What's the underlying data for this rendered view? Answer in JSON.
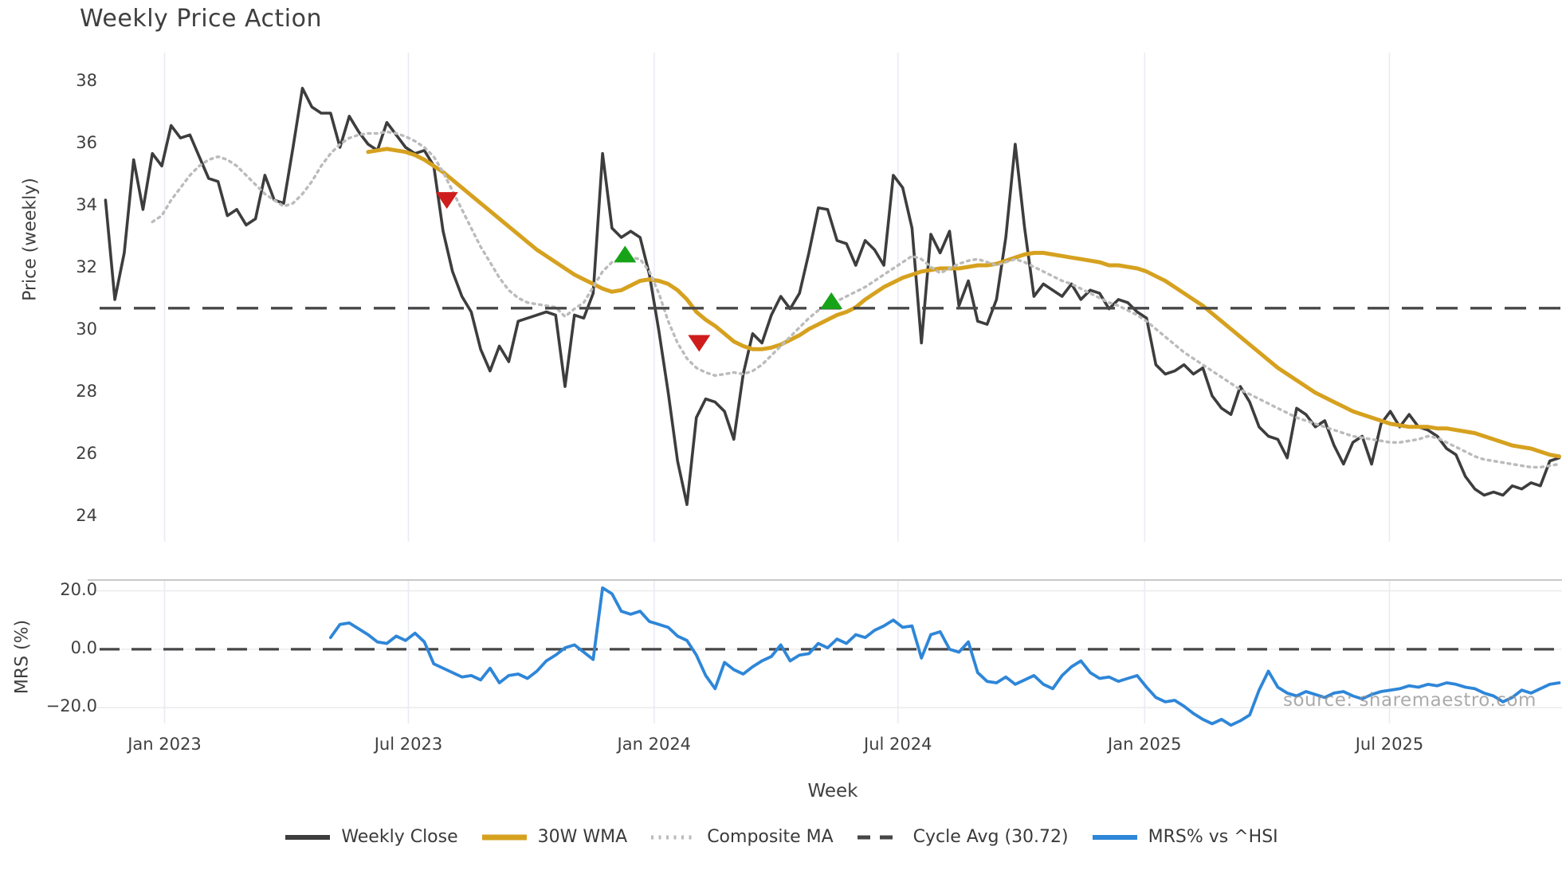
{
  "title": "Weekly Price Action",
  "watermark": "source: sharemaestro.com",
  "colors": {
    "background": "#ffffff",
    "text": "#3f3f3f",
    "grid_vertical": "#e9edf4",
    "grid_horizontal": "#ececec",
    "panel_border": "#c9c9c9",
    "weekly_close": "#3d3d3d",
    "wma30": "#d6a11f",
    "composite": "#bbbbbb",
    "cycle_avg": "#474747",
    "mrs": "#2e86d8",
    "buy_marker": "#17a317",
    "sell_marker": "#cf1d1d",
    "watermark": "#8f8f8f"
  },
  "legend": {
    "items": [
      {
        "label": "Weekly Close",
        "style": "solid",
        "color": "#3d3d3d",
        "width": 6
      },
      {
        "label": "30W WMA",
        "style": "solid",
        "color": "#d6a11f",
        "width": 7
      },
      {
        "label": "Composite MA",
        "style": "dotted",
        "color": "#bbbbbb",
        "width": 5
      },
      {
        "label": "Cycle Avg (30.72)",
        "style": "dashed",
        "color": "#474747",
        "width": 5
      },
      {
        "label": "MRS% vs ^HSI",
        "style": "solid",
        "color": "#2e86d8",
        "width": 6
      }
    ]
  },
  "chart_data": {
    "type": "line",
    "x": {
      "label": "Week",
      "unit": "weeks",
      "xlim_weeks": [
        -0.2,
        155.3
      ],
      "ticks": [
        {
          "week": 6.3,
          "label": "Jan 2023"
        },
        {
          "week": 32.3,
          "label": "Jul 2023"
        },
        {
          "week": 58.5,
          "label": "Jan 2024"
        },
        {
          "week": 84.5,
          "label": "Jul 2024"
        },
        {
          "week": 110.8,
          "label": "Jan 2025"
        },
        {
          "week": 136.9,
          "label": "Jul 2025"
        }
      ]
    },
    "panels": [
      {
        "id": "price",
        "ylabel": "Price (weekly)",
        "ylim": [
          23.2,
          38.95
        ],
        "yticks": [
          {
            "value": 38,
            "label": "38"
          },
          {
            "value": 36,
            "label": "36"
          },
          {
            "value": 34,
            "label": "34"
          },
          {
            "value": 32,
            "label": "32"
          },
          {
            "value": 30,
            "label": "30"
          },
          {
            "value": 28,
            "label": "28"
          },
          {
            "value": 26,
            "label": "26"
          },
          {
            "value": 24,
            "label": "24"
          }
        ],
        "cycle_avg": 30.72,
        "series": [
          {
            "name": "Weekly Close",
            "start_week": 0,
            "values": [
              34.2,
              31.0,
              32.5,
              35.5,
              33.9,
              35.7,
              35.3,
              36.6,
              36.2,
              36.3,
              35.6,
              34.9,
              34.8,
              33.7,
              33.9,
              33.4,
              33.6,
              35.0,
              34.2,
              34.1,
              35.9,
              37.8,
              37.2,
              37.0,
              37.0,
              35.9,
              36.9,
              36.4,
              36.0,
              35.8,
              36.7,
              36.3,
              35.9,
              35.7,
              35.8,
              35.3,
              33.2,
              31.9,
              31.1,
              30.6,
              29.4,
              28.7,
              29.5,
              29.0,
              30.3,
              30.4,
              30.5,
              30.6,
              30.5,
              28.2,
              30.5,
              30.4,
              31.2,
              35.7,
              33.3,
              33.0,
              33.2,
              33.0,
              31.8,
              30.0,
              28.0,
              25.8,
              24.4,
              27.2,
              27.8,
              27.7,
              27.4,
              26.5,
              28.6,
              29.9,
              29.6,
              30.5,
              31.1,
              30.7,
              31.2,
              32.5,
              33.95,
              33.9,
              32.9,
              32.8,
              32.1,
              32.9,
              32.6,
              32.1,
              35.0,
              34.6,
              33.3,
              29.6,
              33.1,
              32.5,
              33.2,
              30.8,
              31.6,
              30.3,
              30.2,
              31.0,
              33.0,
              36.0,
              33.3,
              31.1,
              31.5,
              31.3,
              31.1,
              31.5,
              31.0,
              31.3,
              31.2,
              30.7,
              31.0,
              30.9,
              30.6,
              30.4,
              28.9,
              28.6,
              28.7,
              28.9,
              28.6,
              28.8,
              27.9,
              27.5,
              27.3,
              28.2,
              27.7,
              26.9,
              26.6,
              26.5,
              25.9,
              27.5,
              27.3,
              26.9,
              27.1,
              26.3,
              25.7,
              26.4,
              26.6,
              25.7,
              27.0,
              27.4,
              26.9,
              27.3,
              26.9,
              26.8,
              26.6,
              26.2,
              26.0,
              25.3,
              24.9,
              24.7,
              24.8,
              24.7,
              25.0,
              24.9,
              25.1,
              25.0,
              25.8,
              25.9
            ]
          },
          {
            "name": "30W WMA",
            "start_week": 28,
            "values": [
              35.75,
              35.8,
              35.85,
              35.8,
              35.75,
              35.65,
              35.5,
              35.3,
              35.1,
              34.85,
              34.6,
              34.35,
              34.1,
              33.85,
              33.6,
              33.35,
              33.1,
              32.85,
              32.6,
              32.4,
              32.2,
              32.0,
              31.8,
              31.65,
              31.5,
              31.35,
              31.25,
              31.3,
              31.45,
              31.6,
              31.65,
              31.6,
              31.5,
              31.3,
              31.0,
              30.6,
              30.35,
              30.15,
              29.9,
              29.65,
              29.5,
              29.4,
              29.4,
              29.45,
              29.55,
              29.7,
              29.85,
              30.05,
              30.2,
              30.35,
              30.5,
              30.6,
              30.75,
              31.0,
              31.2,
              31.4,
              31.55,
              31.7,
              31.8,
              31.9,
              31.95,
              32.0,
              32.0,
              32.0,
              32.05,
              32.1,
              32.1,
              32.15,
              32.25,
              32.35,
              32.45,
              32.5,
              32.5,
              32.45,
              32.4,
              32.35,
              32.3,
              32.25,
              32.2,
              32.1,
              32.1,
              32.05,
              32.0,
              31.9,
              31.75,
              31.6,
              31.4,
              31.2,
              31.0,
              30.8,
              30.55,
              30.3,
              30.05,
              29.8,
              29.55,
              29.3,
              29.05,
              28.8,
              28.6,
              28.4,
              28.2,
              28.0,
              27.85,
              27.7,
              27.55,
              27.4,
              27.3,
              27.2,
              27.1,
              27.0,
              26.95,
              26.9,
              26.9,
              26.9,
              26.85,
              26.85,
              26.8,
              26.75,
              26.7,
              26.6,
              26.5,
              26.4,
              26.3,
              26.25,
              26.2,
              26.1,
              26.0,
              25.95
            ]
          },
          {
            "name": "Composite MA",
            "start_week": 5,
            "values": [
              33.5,
              33.7,
              34.2,
              34.6,
              35.0,
              35.3,
              35.5,
              35.6,
              35.5,
              35.3,
              35.0,
              34.7,
              34.4,
              34.2,
              34.0,
              34.1,
              34.4,
              34.8,
              35.3,
              35.7,
              36.0,
              36.2,
              36.3,
              36.35,
              36.35,
              36.4,
              36.35,
              36.25,
              36.1,
              35.9,
              35.6,
              35.1,
              34.5,
              33.9,
              33.3,
              32.7,
              32.2,
              31.7,
              31.3,
              31.05,
              30.9,
              30.85,
              30.8,
              30.75,
              30.45,
              30.7,
              30.9,
              31.4,
              31.9,
              32.2,
              32.3,
              32.35,
              32.3,
              31.9,
              31.2,
              30.3,
              29.6,
              29.1,
              28.8,
              28.65,
              28.55,
              28.6,
              28.65,
              28.6,
              28.7,
              28.9,
              29.2,
              29.5,
              29.8,
              30.1,
              30.4,
              30.65,
              30.85,
              30.95,
              31.1,
              31.25,
              31.4,
              31.6,
              31.8,
              32.0,
              32.2,
              32.4,
              32.3,
              32.05,
              31.85,
              32.0,
              32.15,
              32.25,
              32.3,
              32.2,
              32.1,
              32.2,
              32.3,
              32.2,
              32.05,
              31.9,
              31.75,
              31.6,
              31.5,
              31.35,
              31.2,
              31.05,
              30.9,
              30.8,
              30.65,
              30.5,
              30.3,
              30.05,
              29.8,
              29.55,
              29.3,
              29.1,
              28.9,
              28.7,
              28.5,
              28.3,
              28.1,
              27.95,
              27.8,
              27.65,
              27.5,
              27.35,
              27.2,
              27.1,
              27.0,
              26.9,
              26.8,
              26.7,
              26.6,
              26.55,
              26.5,
              26.45,
              26.4,
              26.4,
              26.45,
              26.5,
              26.6,
              26.55,
              26.4,
              26.25,
              26.1,
              25.95,
              25.85,
              25.8,
              25.75,
              25.7,
              25.65,
              25.6,
              25.6,
              25.65,
              25.7
            ]
          }
        ],
        "markers": [
          {
            "type": "sell",
            "week": 36.4,
            "value": 34.2
          },
          {
            "type": "buy",
            "week": 55.4,
            "value": 32.45
          },
          {
            "type": "sell",
            "week": 63.3,
            "value": 29.6
          },
          {
            "type": "buy",
            "week": 77.4,
            "value": 30.95
          }
        ]
      },
      {
        "id": "mrs",
        "ylabel": "MRS (%)",
        "ylim": [
          -25.4,
          23.7
        ],
        "yticks": [
          {
            "value": 20,
            "label": "20.0"
          },
          {
            "value": 0,
            "label": "0.0"
          },
          {
            "value": -20,
            "label": "−20.0"
          }
        ],
        "zero_line": 0,
        "series": [
          {
            "name": "MRS% vs ^HSI",
            "start_week": 24,
            "values": [
              4,
              8.5,
              9,
              7,
              5,
              2.5,
              2,
              4.5,
              3,
              5.5,
              2.5,
              -5,
              -6.5,
              -8,
              -9.5,
              -9,
              -10.5,
              -6.5,
              -11.5,
              -9,
              -8.5,
              -10,
              -7.5,
              -4,
              -2,
              0.5,
              1.5,
              -1,
              -3.5,
              21,
              19,
              13,
              12,
              13,
              9.5,
              8.5,
              7.5,
              4.5,
              3,
              -2,
              -9,
              -13.5,
              -4.5,
              -7,
              -8.5,
              -6,
              -4,
              -2.5,
              1.5,
              -4,
              -2,
              -1.5,
              2,
              0.5,
              3.5,
              2,
              5,
              4,
              6.5,
              8,
              10,
              7.5,
              8,
              -3,
              5,
              6,
              0,
              -1,
              2.5,
              -8,
              -11,
              -11.5,
              -9.5,
              -12,
              -10.5,
              -9,
              -12,
              -13.5,
              -9,
              -6,
              -4,
              -8,
              -10,
              -9.5,
              -11,
              -10,
              -9,
              -13,
              -16.5,
              -18,
              -17.5,
              -19.5,
              -22,
              -24,
              -25.5,
              -24,
              -26,
              -24.5,
              -22.5,
              -14,
              -7.5,
              -13,
              -15,
              -16,
              -14.5,
              -15.5,
              -16.5,
              -15,
              -14.5,
              -16,
              -17,
              -15.5,
              -14.5,
              -14,
              -13.5,
              -12.5,
              -13,
              -12,
              -12.5,
              -11.5,
              -12,
              -13,
              -13.5,
              -15,
              -16,
              -18,
              -16.5,
              -14,
              -15,
              -13.5,
              -12,
              -11.5
            ]
          }
        ]
      }
    ]
  }
}
